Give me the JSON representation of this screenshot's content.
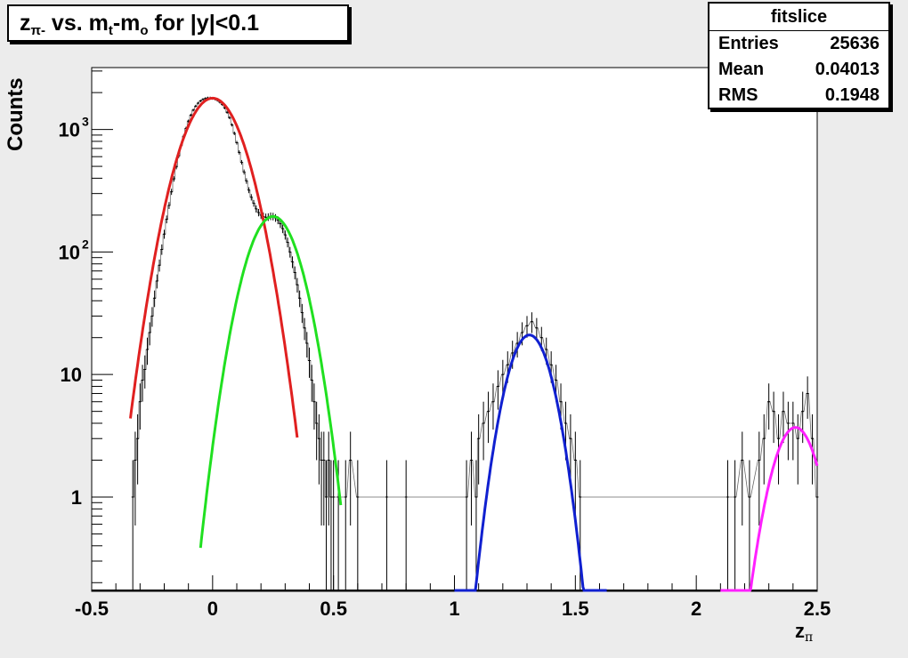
{
  "chart_data": {
    "type": "histogram",
    "title": "z",
    "title_sub": "π-",
    "title_rest": " vs. m",
    "title_sub2": "t",
    "title_rest2": "-m",
    "title_sub3": "o",
    "title_rest3": " for |y|<0.1",
    "xlabel": "z",
    "xlabel_sub": "π",
    "ylabel": "Counts",
    "xlim": [
      -0.5,
      2.5
    ],
    "ylim": [
      0.17,
      3200
    ],
    "yscale": "log",
    "x_ticks": [
      -0.5,
      0,
      0.5,
      1,
      1.5,
      2,
      2.5
    ],
    "x_tick_labels": [
      "-0.5",
      "0",
      "0.5",
      "1",
      "1.5",
      "2",
      "2.5"
    ],
    "y_ticks": [
      1,
      10,
      100,
      1000
    ],
    "y_tick_labels": [
      {
        "base": "1",
        "exp": ""
      },
      {
        "base": "10",
        "exp": ""
      },
      {
        "base": "10",
        "exp": "2"
      },
      {
        "base": "10",
        "exp": "3"
      }
    ],
    "stats": {
      "name": "fitslice",
      "rows": [
        {
          "label": "Entries",
          "value": "25636"
        },
        {
          "label": "Mean",
          "value": "0.04013"
        },
        {
          "label": "RMS",
          "value": "0.1948"
        }
      ]
    },
    "histogram": {
      "bin_width": 0.01,
      "color": "#000000",
      "points": [
        [
          -0.33,
          1
        ],
        [
          -0.32,
          2
        ],
        [
          -0.31,
          3
        ],
        [
          -0.3,
          6
        ],
        [
          -0.29,
          9
        ],
        [
          -0.28,
          11
        ],
        [
          -0.27,
          16
        ],
        [
          -0.26,
          22
        ],
        [
          -0.25,
          30
        ],
        [
          -0.24,
          42
        ],
        [
          -0.23,
          58
        ],
        [
          -0.22,
          78
        ],
        [
          -0.21,
          105
        ],
        [
          -0.2,
          140
        ],
        [
          -0.19,
          185
        ],
        [
          -0.18,
          240
        ],
        [
          -0.17,
          310
        ],
        [
          -0.16,
          395
        ],
        [
          -0.15,
          495
        ],
        [
          -0.14,
          610
        ],
        [
          -0.13,
          740
        ],
        [
          -0.12,
          880
        ],
        [
          -0.11,
          1020
        ],
        [
          -0.1,
          1170
        ],
        [
          -0.09,
          1310
        ],
        [
          -0.08,
          1440
        ],
        [
          -0.07,
          1550
        ],
        [
          -0.06,
          1640
        ],
        [
          -0.05,
          1710
        ],
        [
          -0.04,
          1760
        ],
        [
          -0.03,
          1790
        ],
        [
          -0.02,
          1810
        ],
        [
          -0.01,
          1810
        ],
        [
          0.0,
          1790
        ],
        [
          0.01,
          1770
        ],
        [
          0.02,
          1730
        ],
        [
          0.03,
          1670
        ],
        [
          0.04,
          1600
        ],
        [
          0.05,
          1500
        ],
        [
          0.06,
          1380
        ],
        [
          0.07,
          1250
        ],
        [
          0.08,
          1090
        ],
        [
          0.09,
          930
        ],
        [
          0.1,
          780
        ],
        [
          0.11,
          650
        ],
        [
          0.12,
          540
        ],
        [
          0.13,
          450
        ],
        [
          0.14,
          380
        ],
        [
          0.15,
          320
        ],
        [
          0.16,
          280
        ],
        [
          0.17,
          250
        ],
        [
          0.18,
          225
        ],
        [
          0.19,
          210
        ],
        [
          0.2,
          200
        ],
        [
          0.21,
          195
        ],
        [
          0.22,
          192
        ],
        [
          0.23,
          193
        ],
        [
          0.24,
          196
        ],
        [
          0.25,
          195
        ],
        [
          0.26,
          190
        ],
        [
          0.27,
          182
        ],
        [
          0.28,
          170
        ],
        [
          0.29,
          155
        ],
        [
          0.3,
          138
        ],
        [
          0.31,
          120
        ],
        [
          0.32,
          100
        ],
        [
          0.33,
          83
        ],
        [
          0.34,
          68
        ],
        [
          0.35,
          54
        ],
        [
          0.36,
          42
        ],
        [
          0.37,
          32
        ],
        [
          0.38,
          24
        ],
        [
          0.39,
          18
        ],
        [
          0.4,
          13
        ],
        [
          0.41,
          9
        ],
        [
          0.42,
          6
        ],
        [
          0.43,
          4
        ],
        [
          0.44,
          3
        ],
        [
          0.45,
          2
        ],
        [
          0.46,
          2
        ],
        [
          0.47,
          1
        ],
        [
          0.48,
          2
        ],
        [
          0.49,
          1
        ],
        [
          0.5,
          1
        ],
        [
          0.52,
          1
        ],
        [
          0.55,
          1
        ],
        [
          0.57,
          2
        ],
        [
          0.6,
          1
        ],
        [
          0.72,
          1
        ],
        [
          0.8,
          1
        ],
        [
          1.05,
          1
        ],
        [
          1.07,
          2
        ],
        [
          1.09,
          1
        ],
        [
          1.1,
          3
        ],
        [
          1.12,
          4
        ],
        [
          1.14,
          5
        ],
        [
          1.16,
          6
        ],
        [
          1.18,
          8
        ],
        [
          1.2,
          10
        ],
        [
          1.22,
          12
        ],
        [
          1.24,
          15
        ],
        [
          1.26,
          18
        ],
        [
          1.28,
          22
        ],
        [
          1.3,
          25
        ],
        [
          1.32,
          27
        ],
        [
          1.34,
          24
        ],
        [
          1.36,
          20
        ],
        [
          1.38,
          16
        ],
        [
          1.4,
          12
        ],
        [
          1.42,
          9
        ],
        [
          1.44,
          6
        ],
        [
          1.46,
          4
        ],
        [
          1.48,
          3
        ],
        [
          1.5,
          2
        ],
        [
          1.52,
          1
        ],
        [
          2.13,
          1
        ],
        [
          2.16,
          1
        ],
        [
          2.19,
          2
        ],
        [
          2.22,
          1
        ],
        [
          2.26,
          2
        ],
        [
          2.28,
          3
        ],
        [
          2.3,
          6
        ],
        [
          2.32,
          5
        ],
        [
          2.34,
          3
        ],
        [
          2.36,
          5
        ],
        [
          2.38,
          4
        ],
        [
          2.4,
          4
        ],
        [
          2.42,
          3
        ],
        [
          2.44,
          5
        ],
        [
          2.46,
          7
        ],
        [
          2.48,
          3
        ],
        [
          2.5,
          1
        ]
      ]
    },
    "series": [
      {
        "color": "#e02020",
        "mean": 0.0,
        "sigma": 0.098,
        "amp": 1800,
        "range": [
          -0.34,
          0.35
        ]
      },
      {
        "color": "#20e020",
        "mean": 0.25,
        "sigma": 0.085,
        "amp": 195,
        "range": [
          -0.05,
          0.53
        ]
      },
      {
        "color": "#1020d0",
        "mean": 1.31,
        "sigma": 0.072,
        "amp": 21,
        "range": [
          1.0,
          1.63
        ]
      },
      {
        "color": "#ff20ff",
        "mean": 2.41,
        "sigma": 0.075,
        "amp": 3.7,
        "range": [
          2.1,
          2.5
        ]
      }
    ]
  }
}
